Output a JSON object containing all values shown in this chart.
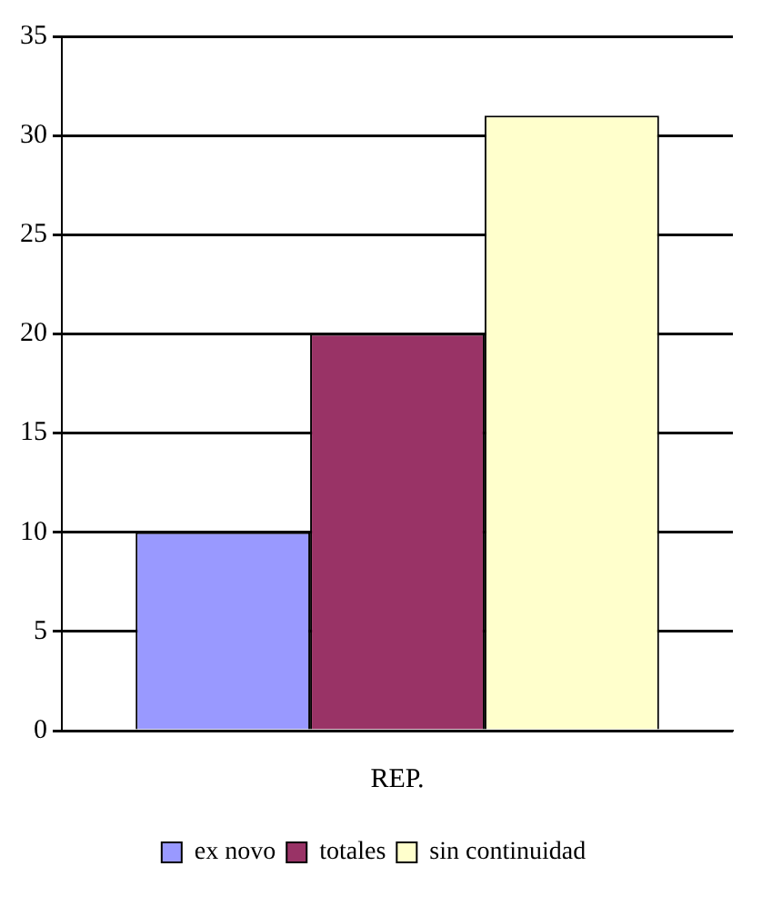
{
  "chart_data": {
    "type": "bar",
    "categories": [
      "REP."
    ],
    "series": [
      {
        "name": "ex novo",
        "color": "#9999ff",
        "values": [
          10
        ]
      },
      {
        "name": "totales",
        "color": "#993366",
        "values": [
          20
        ]
      },
      {
        "name": "sin continuidad",
        "color": "#ffffcc",
        "values": [
          31
        ]
      }
    ],
    "ylim": [
      0,
      35
    ],
    "yticks": [
      0,
      5,
      10,
      15,
      20,
      25,
      30,
      35
    ],
    "grid": "y",
    "legend": "bottom"
  }
}
